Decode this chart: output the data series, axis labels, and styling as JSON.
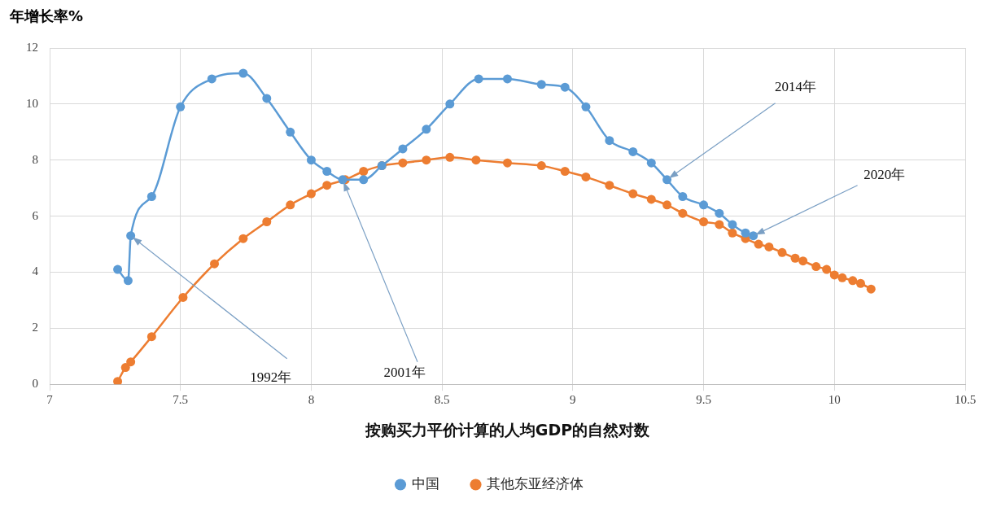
{
  "chart_data": {
    "type": "line",
    "ylabel": "年增长率%",
    "xlabel": "按购买力平价计算的人均GDP的自然对数",
    "xlim": [
      7,
      10.5
    ],
    "xticks": [
      7,
      {
        "value": 7.5,
        "label": "7.5"
      },
      8,
      {
        "value": 8.5,
        "label": "8.5"
      },
      9,
      {
        "value": 9.5,
        "label": "9.5"
      },
      10,
      {
        "value": 10.5,
        "label": "10.5"
      }
    ],
    "ylim": [
      0,
      12
    ],
    "yticks": [
      0,
      2,
      4,
      6,
      8,
      10,
      12
    ],
    "grid": true,
    "legend": "bottom",
    "marker": "circle",
    "line_style": "solid",
    "series": [
      {
        "name": "中国",
        "color": "#5b9bd5",
        "x": [
          7.26,
          7.3,
          7.31,
          7.39,
          7.5,
          7.62,
          7.74,
          7.83,
          7.92,
          8.0,
          8.06,
          8.12,
          8.2,
          8.27,
          8.35,
          8.44,
          8.53,
          8.64,
          8.75,
          8.88,
          8.97,
          9.05,
          9.14,
          9.23,
          9.3,
          9.36,
          9.42,
          9.5,
          9.56,
          9.61,
          9.66,
          9.69
        ],
        "values": [
          4.1,
          3.7,
          5.3,
          6.7,
          9.9,
          10.9,
          11.1,
          10.2,
          9.0,
          8.0,
          7.6,
          7.3,
          7.3,
          7.8,
          8.4,
          9.1,
          10.0,
          10.9,
          10.9,
          10.7,
          10.6,
          9.9,
          8.7,
          8.3,
          7.9,
          7.3,
          6.7,
          6.4,
          6.1,
          5.7,
          5.4,
          5.3
        ]
      },
      {
        "name": "其他东亚经济体",
        "color": "#ed7d31",
        "x": [
          7.26,
          7.29,
          7.31,
          7.39,
          7.51,
          7.63,
          7.74,
          7.83,
          7.92,
          8.0,
          8.06,
          8.13,
          8.2,
          8.27,
          8.35,
          8.44,
          8.53,
          8.63,
          8.75,
          8.88,
          8.97,
          9.05,
          9.14,
          9.23,
          9.3,
          9.36,
          9.42,
          9.5,
          9.56,
          9.61,
          9.66,
          9.71,
          9.75,
          9.8,
          9.85,
          9.88,
          9.93,
          9.97,
          10.0,
          10.03,
          10.07,
          10.1,
          10.14
        ],
        "values": [
          0.1,
          0.6,
          0.8,
          1.7,
          3.1,
          4.3,
          5.2,
          5.8,
          6.4,
          6.8,
          7.1,
          7.3,
          7.6,
          7.8,
          7.9,
          8.0,
          8.1,
          8.0,
          7.9,
          7.8,
          7.6,
          7.4,
          7.1,
          6.8,
          6.6,
          6.4,
          6.1,
          5.8,
          5.7,
          5.4,
          5.2,
          5.0,
          4.9,
          4.7,
          4.5,
          4.4,
          4.2,
          4.1,
          3.9,
          3.8,
          3.7,
          3.6,
          3.4
        ]
      }
    ],
    "annotations": [
      {
        "text": "1992年",
        "x": 7.31,
        "y": 5.3
      },
      {
        "text": "2001年",
        "x": 8.12,
        "y": 7.3
      },
      {
        "text": "2014年",
        "x": 9.36,
        "y": 7.3
      },
      {
        "text": "2020年",
        "x": 9.69,
        "y": 5.3
      }
    ]
  }
}
